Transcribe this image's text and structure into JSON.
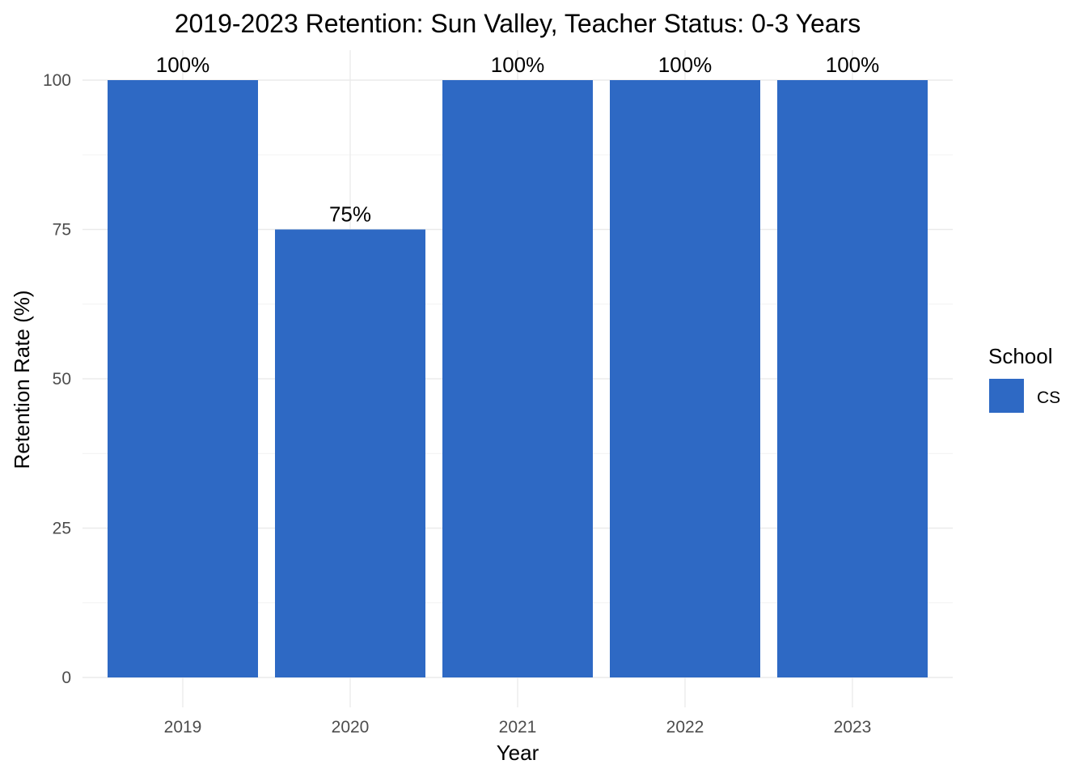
{
  "chart_data": {
    "type": "bar",
    "title": "2019-2023 Retention: Sun Valley, Teacher Status: 0-3 Years",
    "xlabel": "Year",
    "ylabel": "Retention Rate (%)",
    "categories": [
      "2019",
      "2020",
      "2021",
      "2022",
      "2023"
    ],
    "series": [
      {
        "name": "CS",
        "values": [
          100,
          75,
          100,
          100,
          100
        ],
        "labels": [
          "100%",
          "75%",
          "100%",
          "100%",
          "100%"
        ],
        "color": "#2E69C4"
      }
    ],
    "ylim": [
      0,
      100
    ],
    "yticks": [
      "0",
      "25",
      "50",
      "75",
      "100"
    ],
    "grid": true,
    "legend": {
      "title": "School",
      "placement": "right"
    }
  }
}
